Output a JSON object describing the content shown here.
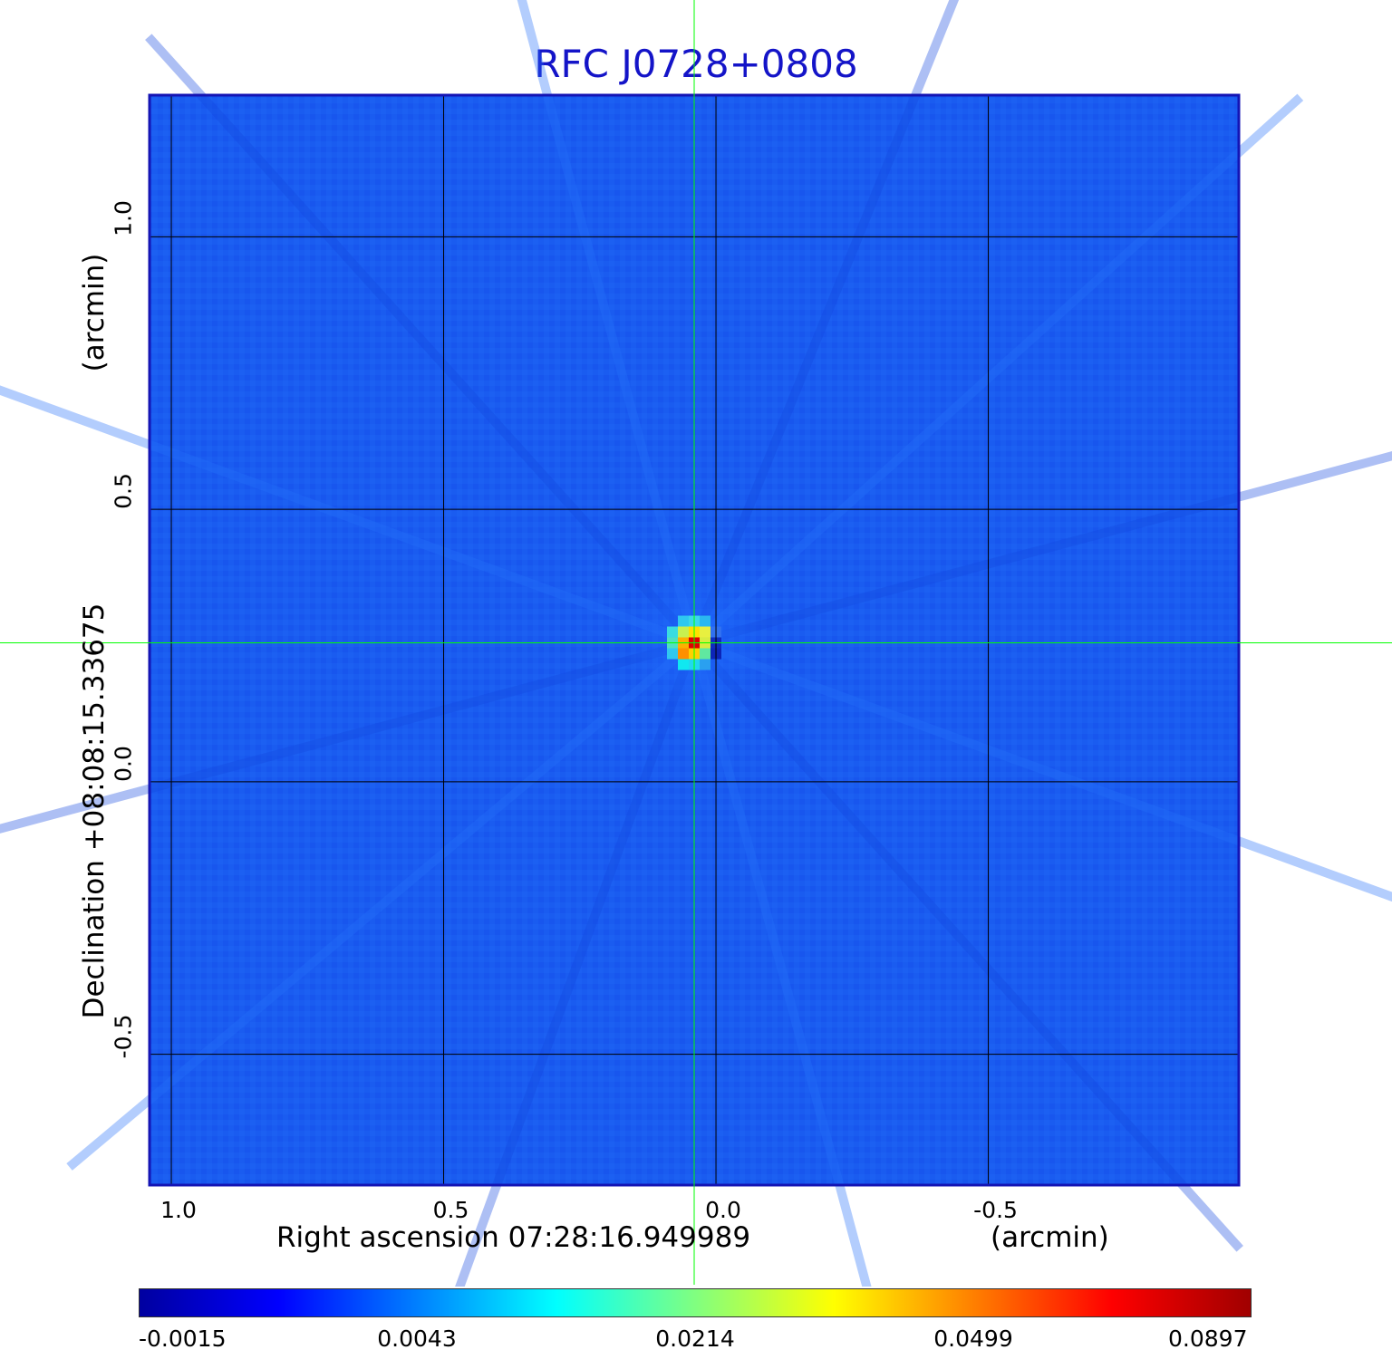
{
  "chart_data": {
    "type": "heatmap",
    "title": "RFC J0728+0808",
    "xlabel": "Right ascension  07:28:16.949989",
    "xunit": "(arcmin)",
    "ylabel": "Declination  +08:08:15.33675",
    "yunit": "(arcmin)",
    "xlim": [
      1.04,
      -0.96
    ],
    "ylim": [
      -0.74,
      1.26
    ],
    "x_ticks": [
      1.0,
      0.5,
      0.0,
      -0.5
    ],
    "x_tick_labels": [
      "1.0",
      "0.5",
      "0.0",
      "-0.5"
    ],
    "y_ticks": [
      1.0,
      0.5,
      0.0,
      -0.5
    ],
    "y_tick_labels": [
      "1.0",
      "0.5",
      "0.0",
      "-0.5"
    ],
    "grid": true,
    "crosshair": {
      "x": 0.04,
      "y": 0.255,
      "color": "#00ff00"
    },
    "source_peak": {
      "x": 0.04,
      "y": 0.255,
      "value": 0.0897
    },
    "background_value": 0.0043,
    "colorbar": {
      "ticks": [
        -0.0015,
        0.0043,
        0.0214,
        0.0499,
        0.0897
      ],
      "tick_labels": [
        "-0.0015",
        "0.0043",
        "0.0214",
        "0.0499",
        "0.0897"
      ],
      "colors": [
        "#0000a0",
        "#0000ff",
        "#0080ff",
        "#00ffff",
        "#80ff80",
        "#ffff00",
        "#ff8000",
        "#ff0000",
        "#a00000"
      ]
    }
  }
}
